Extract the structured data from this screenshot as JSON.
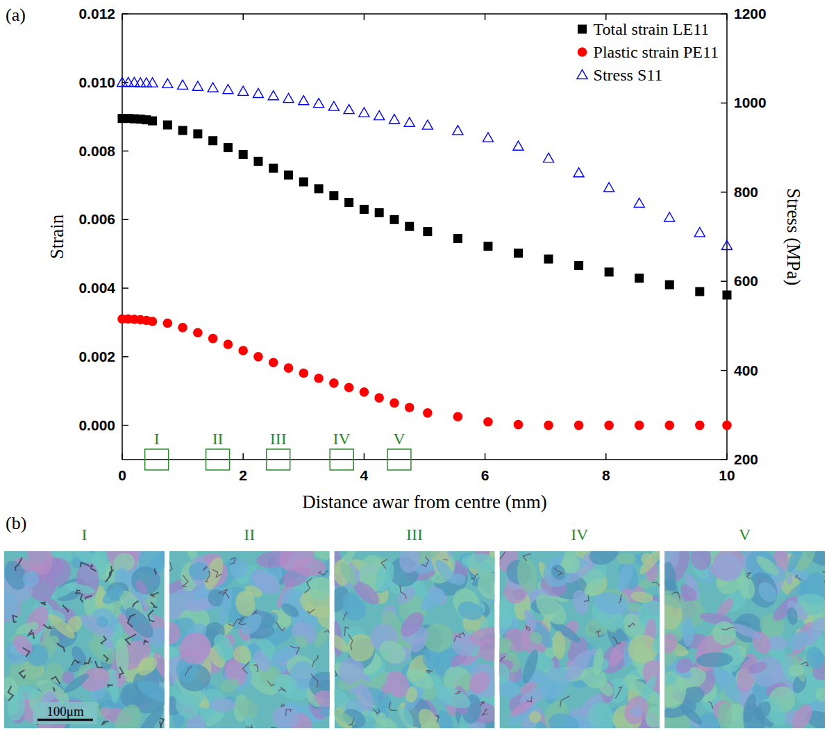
{
  "chart_data": {
    "type": "scatter",
    "x_label": "Distance awar from centre (mm)",
    "y_label": "Strain",
    "y2_label": "Stress (MPa)",
    "x": [
      0,
      0.1,
      0.2,
      0.3,
      0.4,
      0.5,
      0.75,
      1,
      1.25,
      1.5,
      1.75,
      2,
      2.25,
      2.5,
      2.75,
      3,
      3.25,
      3.5,
      3.75,
      4,
      4.25,
      4.5,
      4.75,
      5.05,
      5.55,
      6.05,
      6.55,
      7.05,
      7.55,
      8.05,
      8.55,
      9.05,
      9.55,
      10
    ],
    "series": [
      {
        "name": "Total strain LE11",
        "color": "#000000",
        "marker": "square",
        "values": [
          0.00895,
          0.00895,
          0.00894,
          0.00893,
          0.00891,
          0.00888,
          0.00876,
          0.0086,
          0.0085,
          0.0083,
          0.0081,
          0.0079,
          0.0077,
          0.0075,
          0.0073,
          0.0071,
          0.0069,
          0.0067,
          0.0065,
          0.0063,
          0.0062,
          0.006,
          0.0058,
          0.00565,
          0.00545,
          0.00522,
          0.00502,
          0.00485,
          0.00466,
          0.00447,
          0.00429,
          0.0041,
          0.0039,
          0.0038
        ]
      },
      {
        "name": "Plastic strain PE11",
        "color": "#ff0000",
        "marker": "circle",
        "values": [
          0.0031,
          0.0031,
          0.00309,
          0.00308,
          0.00306,
          0.00303,
          0.00298,
          0.00285,
          0.0027,
          0.00253,
          0.00236,
          0.00218,
          0.002,
          0.00183,
          0.00167,
          0.00152,
          0.00137,
          0.00123,
          0.0011,
          0.00097,
          0.0008,
          0.00065,
          0.00052,
          0.00036,
          0.00025,
          0.0001,
          2e-05,
          0,
          0,
          0,
          0,
          0,
          0,
          0
        ]
      },
      {
        "name": "Stress S11",
        "color": "#0000ff",
        "marker": "triangle-open",
        "axis": "y2",
        "values": [
          1046,
          1046,
          1046,
          1045,
          1045,
          1045,
          1043,
          1040,
          1037,
          1034,
          1030,
          1026,
          1021,
          1016,
          1010,
          1005,
          999,
          992,
          985,
          978,
          971,
          963,
          956,
          950,
          938,
          922,
          903,
          876,
          843,
          810,
          775,
          743,
          709,
          680
        ]
      }
    ],
    "xlim": [
      0,
      10
    ],
    "xticks": [
      0,
      2,
      4,
      6,
      8,
      10
    ],
    "ylim": [
      -0.001,
      0.012
    ],
    "yticks": [
      {
        "value": 0,
        "label": "0.000"
      },
      {
        "value": 0.002,
        "label": "0.002"
      },
      {
        "value": 0.004,
        "label": "0.004"
      },
      {
        "value": 0.006,
        "label": "0.006"
      },
      {
        "value": 0.008,
        "label": "0.008"
      },
      {
        "value": 0.01,
        "label": "0.010"
      },
      {
        "value": 0.012,
        "label": "0.012"
      }
    ],
    "y2lim": [
      200,
      1200
    ],
    "y2ticks": [
      200,
      400,
      600,
      800,
      1000,
      1200
    ],
    "legend": "upper right",
    "grid": false,
    "regions": [
      {
        "label": "I",
        "x": 0.57
      },
      {
        "label": "II",
        "x": 1.58
      },
      {
        "label": "III",
        "x": 2.58
      },
      {
        "label": "IV",
        "x": 3.63
      },
      {
        "label": "V",
        "x": 4.58
      }
    ]
  },
  "panel_labels": [
    "(a)",
    "(b)"
  ],
  "micrographs": {
    "labels": [
      "I",
      "II",
      "III",
      "IV",
      "V"
    ],
    "scale_bar": "100μm"
  }
}
